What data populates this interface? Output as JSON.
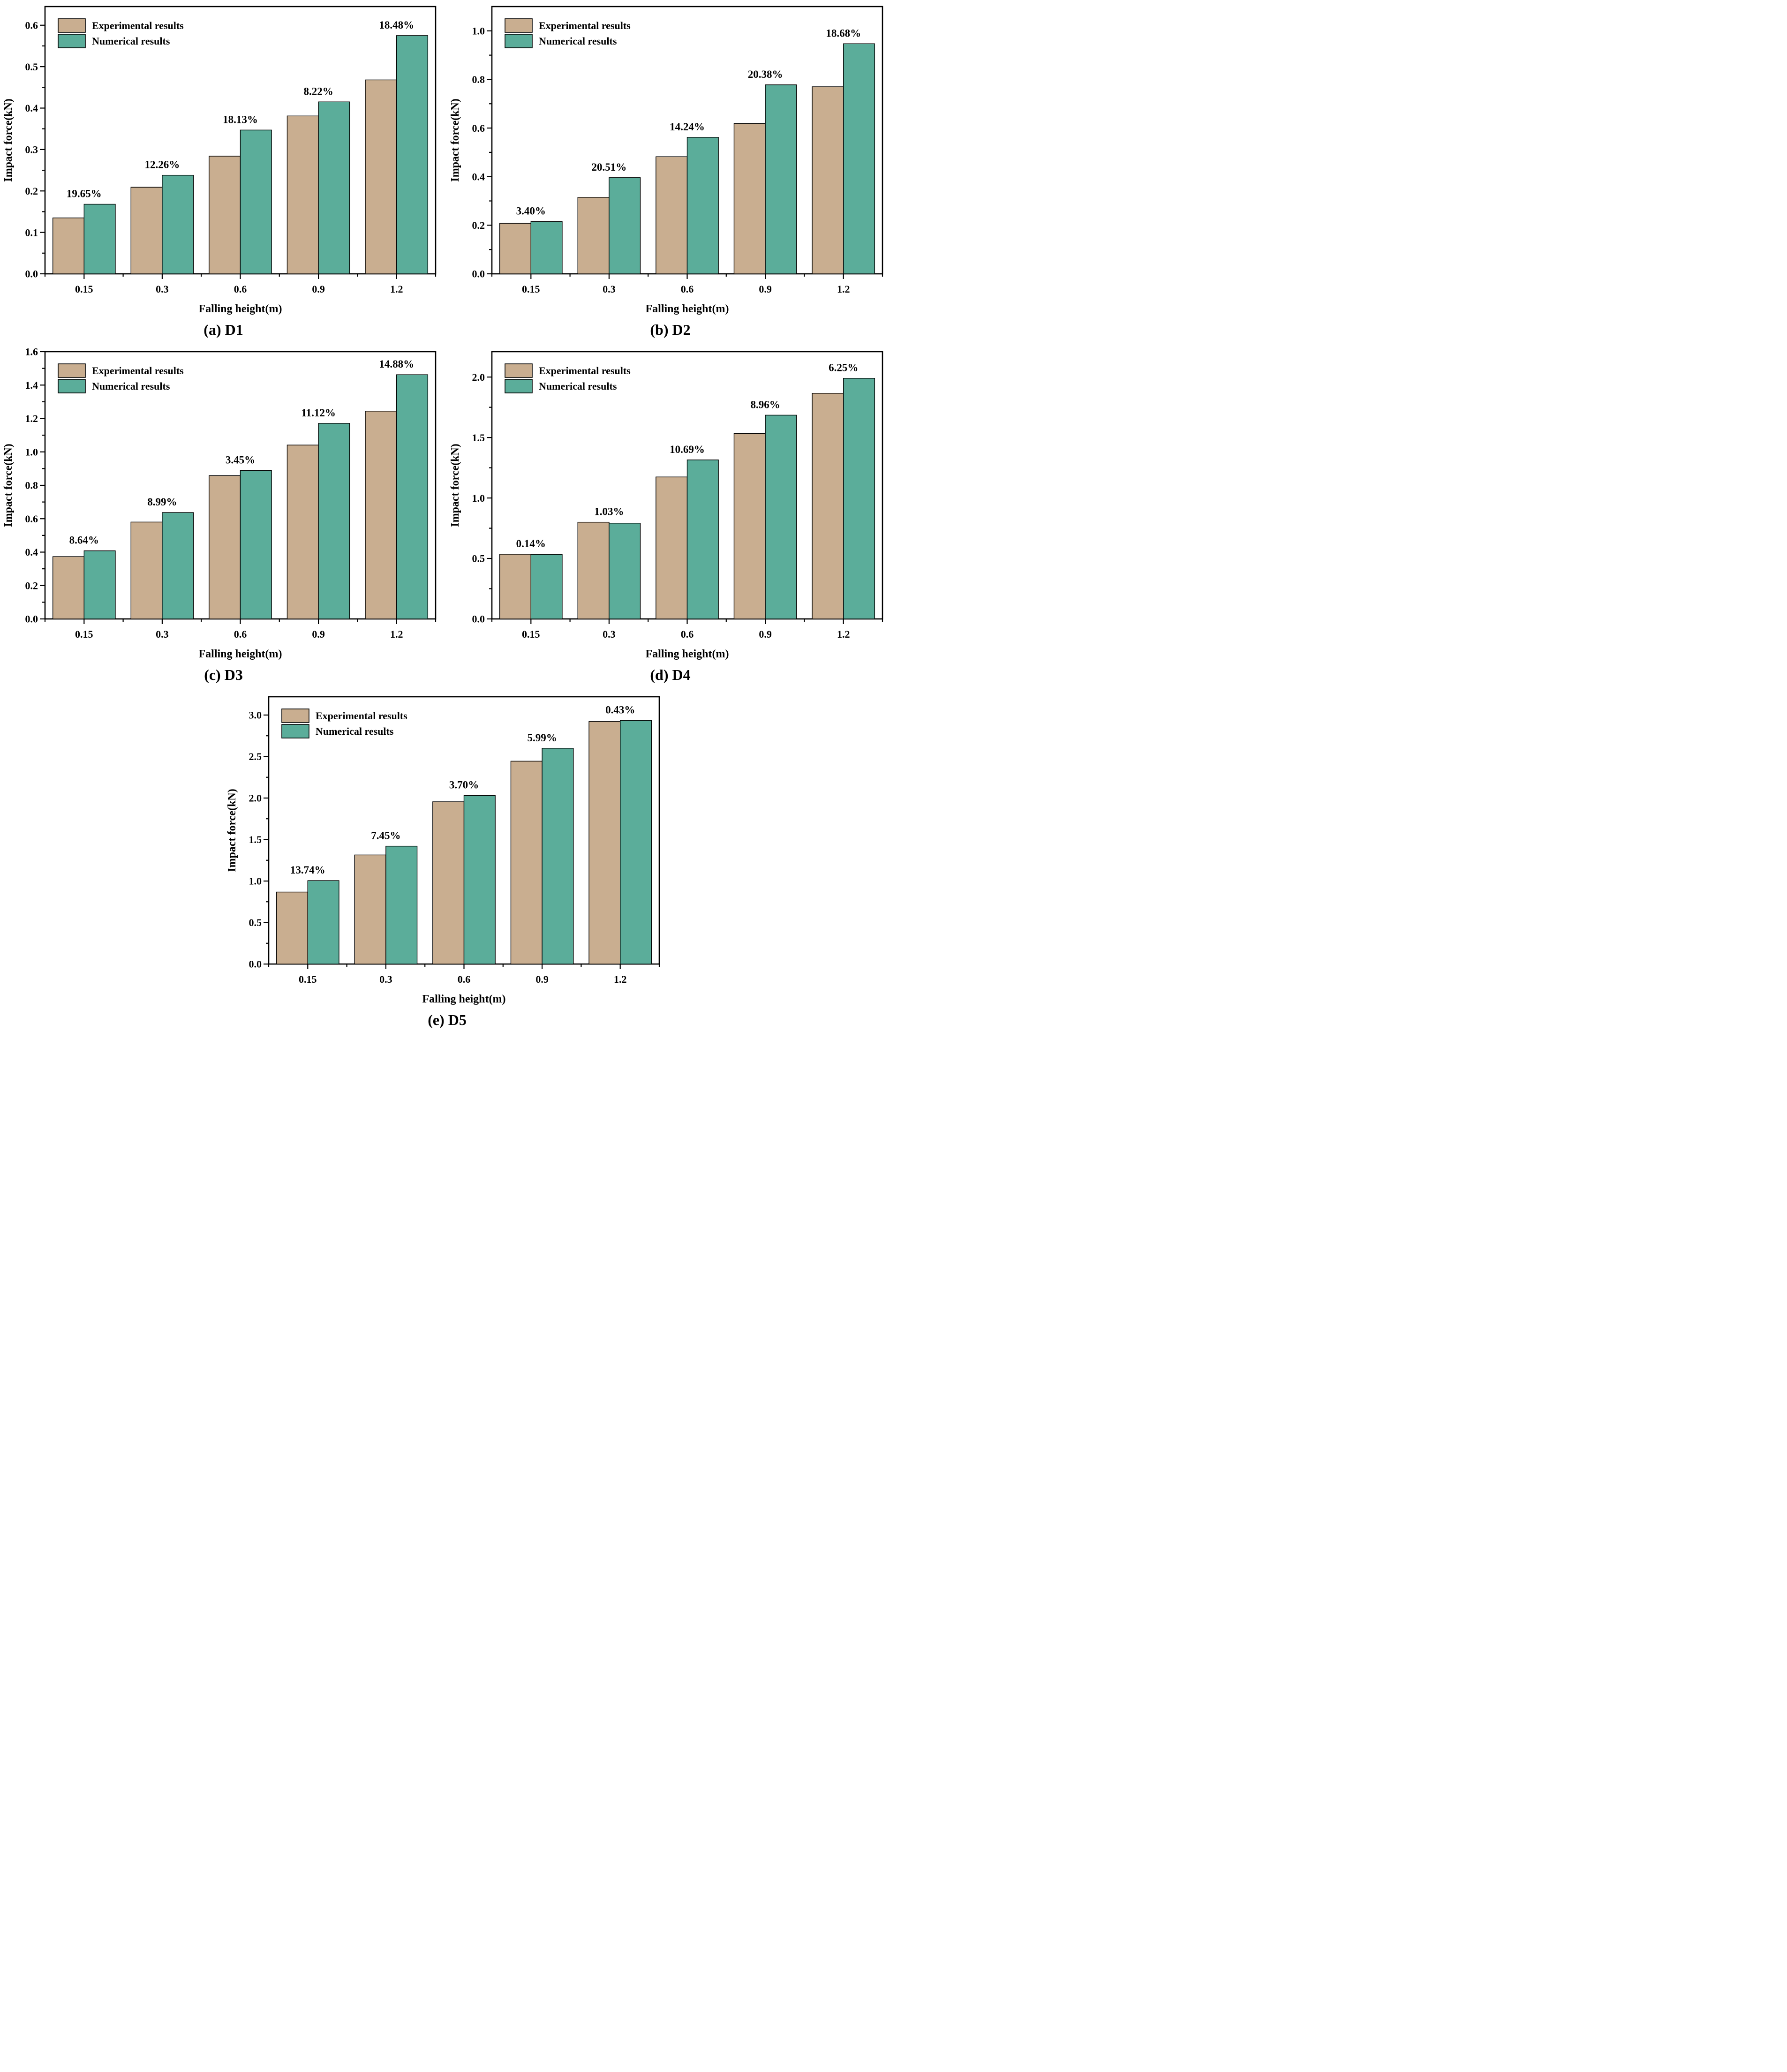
{
  "figure": {
    "series": [
      {
        "label": "Experimental results",
        "color": "#C9AE90"
      },
      {
        "label": "Numerical results",
        "color": "#5BAD9A"
      }
    ],
    "annotation_color": "#FF0000",
    "axis_color": "#000000",
    "background": "#FFFFFF",
    "legend_position": "top-left",
    "grid": false,
    "xlabel": "Falling height(m)",
    "ylabel": "Impact force(kN)",
    "categories": [
      "0.15",
      "0.3",
      "0.6",
      "0.9",
      "1.2"
    ]
  },
  "chart_data": [
    {
      "type": "bar",
      "id": "D1",
      "caption": "(a) D1",
      "xlabel": "Falling height(m)",
      "ylabel": "Impact force(kN)",
      "categories": [
        "0.15",
        "0.3",
        "0.6",
        "0.9",
        "1.2"
      ],
      "series": [
        {
          "name": "Experimental results",
          "values": [
            0.135,
            0.209,
            0.284,
            0.381,
            0.468
          ]
        },
        {
          "name": "Numerical results",
          "values": [
            0.168,
            0.238,
            0.347,
            0.415,
            0.575
          ]
        }
      ],
      "pct_labels": [
        "19.65%",
        "12.26%",
        "18.13%",
        "8.22%",
        "18.48%"
      ],
      "ylim": [
        0,
        0.645
      ],
      "ytick_step": 0.1,
      "yminor_step": 0.05
    },
    {
      "type": "bar",
      "id": "D2",
      "caption": "(b) D2",
      "xlabel": "Falling height(m)",
      "ylabel": "Impact force(kN)",
      "categories": [
        "0.15",
        "0.3",
        "0.6",
        "0.9",
        "1.2"
      ],
      "series": [
        {
          "name": "Experimental results",
          "values": [
            0.208,
            0.315,
            0.482,
            0.619,
            0.77
          ]
        },
        {
          "name": "Numerical results",
          "values": [
            0.215,
            0.396,
            0.562,
            0.778,
            0.947
          ]
        }
      ],
      "pct_labels": [
        "3.40%",
        "20.51%",
        "14.24%",
        "20.38%",
        "18.68%"
      ],
      "ylim": [
        0,
        1.1
      ],
      "ytick_step": 0.2,
      "yminor_step": 0.1
    },
    {
      "type": "bar",
      "id": "D3",
      "caption": "(c) D3",
      "xlabel": "Falling height(m)",
      "ylabel": "Impact force(kN)",
      "categories": [
        "0.15",
        "0.3",
        "0.6",
        "0.9",
        "1.2"
      ],
      "series": [
        {
          "name": "Experimental results",
          "values": [
            0.373,
            0.58,
            0.858,
            1.041,
            1.244
          ]
        },
        {
          "name": "Numerical results",
          "values": [
            0.408,
            0.637,
            0.889,
            1.171,
            1.462
          ]
        }
      ],
      "pct_labels": [
        "8.64%",
        "8.99%",
        "3.45%",
        "11.12%",
        "14.88%"
      ],
      "ylim": [
        0,
        1.6
      ],
      "ytick_step": 0.2,
      "yminor_step": 0.1
    },
    {
      "type": "bar",
      "id": "D4",
      "caption": "(d) D4",
      "xlabel": "Falling height(m)",
      "ylabel": "Impact force(kN)",
      "categories": [
        "0.15",
        "0.3",
        "0.6",
        "0.9",
        "1.2"
      ],
      "series": [
        {
          "name": "Experimental results",
          "values": [
            0.535,
            0.8,
            1.174,
            1.534,
            1.866
          ]
        },
        {
          "name": "Numerical results",
          "values": [
            0.534,
            0.792,
            1.315,
            1.685,
            1.99
          ]
        }
      ],
      "pct_labels": [
        "0.14%",
        "1.03%",
        "10.69%",
        "8.96%",
        "6.25%"
      ],
      "ylim": [
        0,
        2.21
      ],
      "ytick_step": 0.5,
      "yminor_step": 0.25
    },
    {
      "type": "bar",
      "id": "D5",
      "caption": "(e) D5",
      "xlabel": "Falling height(m)",
      "ylabel": "Impact force(kN)",
      "categories": [
        "0.15",
        "0.3",
        "0.6",
        "0.9",
        "1.2"
      ],
      "series": [
        {
          "name": "Experimental results",
          "values": [
            0.867,
            1.314,
            1.955,
            2.444,
            2.922
          ]
        },
        {
          "name": "Numerical results",
          "values": [
            1.005,
            1.42,
            2.03,
            2.6,
            2.935
          ]
        }
      ],
      "pct_labels": [
        "13.74%",
        "7.45%",
        "3.70%",
        "5.99%",
        "0.43%"
      ],
      "ylim": [
        0,
        3.22
      ],
      "ytick_step": 0.5,
      "yminor_step": 0.25
    }
  ]
}
